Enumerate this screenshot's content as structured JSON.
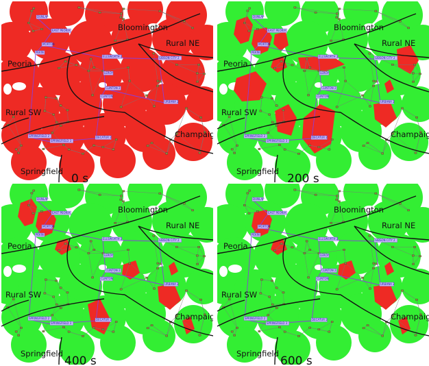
{
  "colors": {
    "outage": "#ee2a24",
    "restored": "#33ee33",
    "background": "#ffffff",
    "boundary": "#111111",
    "transmission": "#8a3ddb",
    "distribution": "#777777"
  },
  "region_labels": {
    "bloomington": "Bloomington",
    "rural_ne": "Rural NE",
    "peoria": "Peoria",
    "rural_sw": "Rural SW",
    "champaign": "Champaign",
    "springfield": "Springfield"
  },
  "city_labels": {
    "dunlap": "DUNLAP",
    "east_peoria": "EAST PEORIA",
    "morton": "MORTON",
    "pekin": "PEKIN",
    "ellsworth": "ELLSWORTH 2",
    "gibson_city": "GIBSON CITY 2",
    "leroy": "LEROY",
    "clinton2": "CLINTON 2",
    "clinton": "CLINTON",
    "urbana": "URBANA 2",
    "springfield2": "SPRINGFIELD 2",
    "springfield3": "SPRINGFIELD 3",
    "decatur": "DECATUR 2"
  },
  "snapshots": [
    {
      "time_label": "0 s",
      "restored_fraction": 0.0
    },
    {
      "time_label": "200 s",
      "restored_fraction": 0.55
    },
    {
      "time_label": "400 s",
      "restored_fraction": 0.82
    },
    {
      "time_label": "600 s",
      "restored_fraction": 0.88
    }
  ],
  "outage_pockets": [
    [],
    [
      "peoria-north",
      "peoria-core",
      "east-peoria",
      "center-west",
      "bloomington-corridor",
      "south-central",
      "south-belt",
      "southeast",
      "rural-west",
      "far-east",
      "champaign-small"
    ],
    [
      "peoria-north",
      "peoria-core",
      "center-west",
      "clinton-south",
      "south-decatur",
      "champaign-small",
      "southeast",
      "east-point"
    ],
    [
      "peoria-core",
      "center-west",
      "clinton-south",
      "champaign-small",
      "southeast",
      "east-point"
    ]
  ]
}
